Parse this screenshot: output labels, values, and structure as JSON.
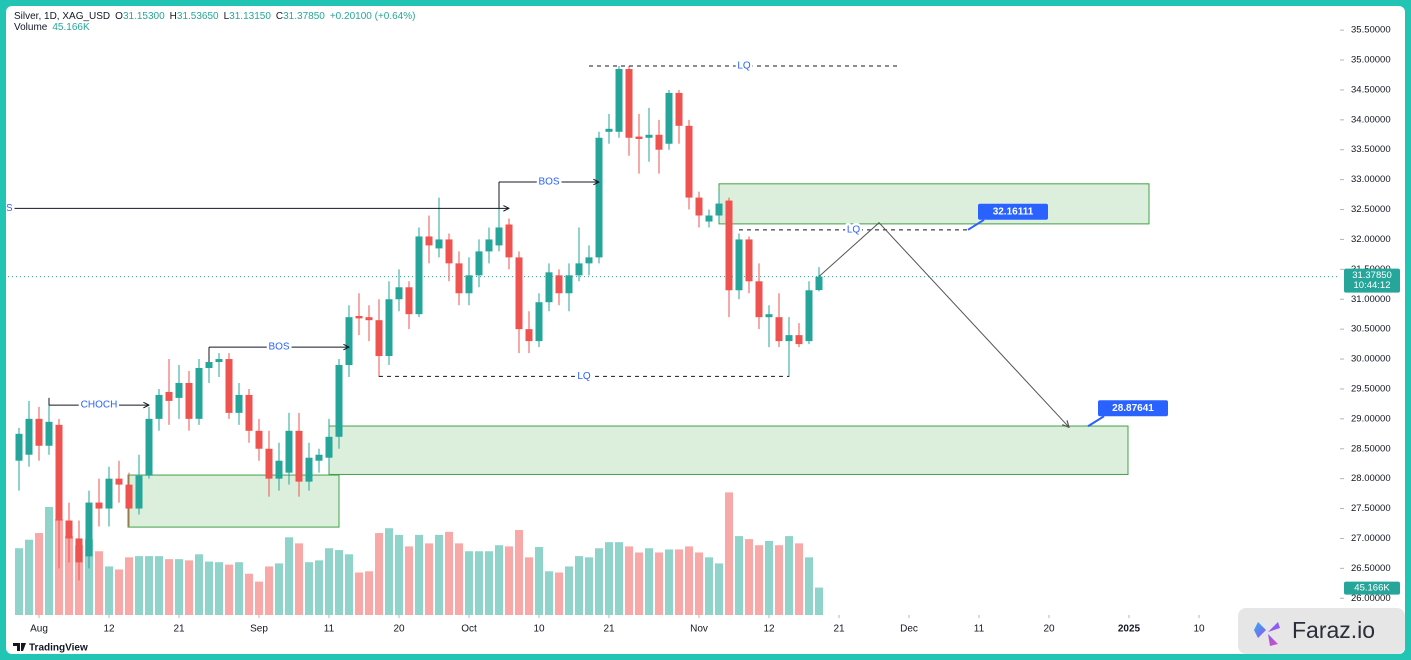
{
  "chart_data": {
    "type": "candlestick",
    "header": {
      "title": "Silver, 1D, XAG_USD",
      "fields": [
        {
          "key": "O",
          "value": "31.15300"
        },
        {
          "key": "H",
          "value": "31.53650"
        },
        {
          "key": "L",
          "value": "31.13150"
        },
        {
          "key": "C",
          "value": "31.37850"
        }
      ],
      "change": "+0.20100 (+0.64%)",
      "volume_label": "Volume",
      "volume_value": "45.166K"
    },
    "up_color": "#26a69a",
    "down_color": "#ef5350",
    "x": [
      -2,
      -1,
      0,
      1,
      2,
      3,
      4,
      5,
      6,
      7,
      8,
      9,
      10,
      11,
      12,
      13,
      14,
      15,
      16,
      17,
      18,
      19,
      20,
      21,
      22,
      23,
      24,
      25,
      26,
      27,
      28,
      29,
      30,
      31,
      32,
      33,
      34,
      35,
      36,
      37,
      38,
      39,
      40,
      41,
      42,
      43,
      44,
      45,
      46,
      47,
      48,
      49,
      50,
      51,
      52,
      53,
      54,
      55,
      56,
      57,
      58,
      59,
      60,
      61,
      62,
      63,
      64,
      65,
      66,
      67,
      68,
      69,
      70,
      71,
      72,
      73,
      74,
      75,
      76,
      77,
      78
    ],
    "open": [
      28.3,
      28.4,
      29.0,
      28.55,
      28.9,
      27.3,
      27.0,
      26.7,
      27.6,
      27.5,
      28.0,
      27.9,
      27.5,
      28.05,
      29.0,
      29.45,
      29.35,
      29.6,
      29.0,
      29.85,
      29.95,
      30.0,
      29.1,
      29.4,
      28.8,
      28.5,
      28.0,
      28.1,
      28.8,
      27.95,
      28.3,
      28.35,
      28.7,
      29.9,
      30.72,
      30.7,
      30.65,
      30.05,
      31.0,
      31.2,
      30.75,
      32.05,
      31.85,
      32.0,
      31.6,
      31.1,
      31.4,
      31.8,
      31.9,
      32.25,
      31.7,
      30.5,
      30.3,
      30.95,
      31.4,
      31.1,
      31.4,
      31.6,
      31.7,
      33.8,
      33.8,
      34.85,
      33.72,
      33.7,
      33.75,
      33.6,
      34.45,
      33.9,
      32.7,
      32.3,
      32.4,
      32.65,
      31.15,
      32.0,
      31.3,
      30.7,
      30.7,
      30.3,
      30.4,
      30.3,
      31.153
    ],
    "high": [
      28.85,
      29.3,
      29.2,
      29.3,
      29.0,
      27.6,
      27.3,
      27.8,
      28.0,
      28.2,
      28.3,
      28.1,
      28.4,
      29.2,
      29.5,
      30.0,
      29.9,
      29.8,
      30.0,
      30.15,
      30.1,
      30.1,
      29.6,
      29.5,
      29.0,
      28.8,
      28.6,
      29.1,
      29.1,
      28.6,
      28.5,
      29.0,
      30.0,
      30.9,
      31.1,
      30.9,
      31.0,
      31.3,
      31.5,
      31.3,
      32.2,
      32.4,
      32.7,
      32.1,
      31.8,
      31.7,
      32.0,
      32.2,
      32.6,
      32.35,
      31.8,
      30.8,
      31.1,
      31.6,
      31.5,
      31.6,
      32.2,
      31.9,
      33.8,
      34.1,
      34.9,
      34.9,
      34.1,
      34.2,
      34.0,
      34.5,
      34.5,
      34.0,
      32.8,
      32.5,
      32.8,
      32.7,
      32.1,
      32.05,
      31.6,
      30.9,
      31.1,
      30.7,
      30.6,
      31.3,
      31.5365
    ],
    "low": [
      27.8,
      28.2,
      28.3,
      28.4,
      26.5,
      26.6,
      26.3,
      26.5,
      27.2,
      27.2,
      27.6,
      27.2,
      27.4,
      28.0,
      28.8,
      28.9,
      29.0,
      28.8,
      28.9,
      29.6,
      29.7,
      29.0,
      28.9,
      28.6,
      28.3,
      27.7,
      27.8,
      27.9,
      27.7,
      27.8,
      28.1,
      28.2,
      28.5,
      29.7,
      30.4,
      30.3,
      29.7,
      29.9,
      30.8,
      30.5,
      30.7,
      31.6,
      31.7,
      31.3,
      30.9,
      30.9,
      31.2,
      31.6,
      31.8,
      31.5,
      30.1,
      30.1,
      30.2,
      30.8,
      30.9,
      30.8,
      31.3,
      31.4,
      31.6,
      33.6,
      33.7,
      33.4,
      33.1,
      33.3,
      33.1,
      33.5,
      33.6,
      32.5,
      32.2,
      32.2,
      32.3,
      30.7,
      31.0,
      31.1,
      30.5,
      30.2,
      30.2,
      29.7,
      30.2,
      30.25,
      31.1315
    ],
    "close": [
      28.75,
      29.0,
      28.55,
      28.95,
      27.3,
      27.0,
      26.6,
      27.6,
      27.5,
      28.0,
      27.9,
      27.5,
      28.05,
      29.0,
      29.4,
      29.3,
      29.6,
      29.0,
      29.85,
      29.95,
      30.0,
      29.1,
      29.4,
      28.8,
      28.5,
      28.0,
      28.3,
      28.8,
      27.95,
      28.35,
      28.4,
      28.7,
      29.9,
      30.7,
      30.68,
      30.65,
      30.05,
      31.0,
      31.2,
      30.75,
      32.05,
      31.9,
      32.0,
      31.6,
      31.1,
      31.4,
      31.8,
      32.0,
      32.2,
      31.7,
      30.5,
      30.3,
      30.95,
      31.45,
      31.1,
      31.4,
      31.6,
      31.7,
      33.7,
      33.85,
      34.85,
      33.7,
      33.68,
      33.75,
      33.5,
      34.45,
      33.9,
      32.7,
      32.4,
      32.4,
      32.6,
      31.15,
      32.0,
      31.3,
      30.7,
      30.75,
      30.3,
      30.4,
      30.25,
      31.15,
      31.3785
    ],
    "volume": [
      110,
      124,
      135,
      178,
      158,
      130,
      115,
      125,
      105,
      80,
      75,
      95,
      97,
      97,
      97,
      92,
      92,
      90,
      100,
      88,
      87,
      83,
      87,
      68,
      55,
      80,
      85,
      128,
      118,
      87,
      90,
      110,
      107,
      100,
      70,
      72,
      135,
      143,
      132,
      113,
      132,
      118,
      132,
      137,
      118,
      105,
      105,
      105,
      115,
      113,
      140,
      95,
      112,
      72,
      70,
      80,
      97,
      95,
      110,
      120,
      120,
      113,
      103,
      110,
      103,
      108,
      108,
      113,
      103,
      95,
      85,
      202,
      130,
      125,
      115,
      122,
      115,
      130,
      118,
      95,
      45.166
    ],
    "volume_value_labels_last": "45.166K",
    "volume_lim": [
      0,
      1000
    ],
    "xlim": [
      -3.9,
      130.1
    ],
    "ylim": [
      25.72,
      35.87
    ],
    "xticks": [
      {
        "value": 0,
        "label": "Aug"
      },
      {
        "value": 7,
        "label": "12"
      },
      {
        "value": 14,
        "label": "21"
      },
      {
        "value": 22,
        "label": "Sep"
      },
      {
        "value": 29,
        "label": "11"
      },
      {
        "value": 36,
        "label": "20"
      },
      {
        "value": 43,
        "label": "Oct"
      },
      {
        "value": 50,
        "label": "10"
      },
      {
        "value": 57,
        "label": "21"
      },
      {
        "value": 66,
        "label": "Nov"
      },
      {
        "value": 73,
        "label": "12"
      },
      {
        "value": 80,
        "label": "21"
      },
      {
        "value": 87,
        "label": "Dec"
      },
      {
        "value": 94,
        "label": "11"
      },
      {
        "value": 101,
        "label": "20"
      },
      {
        "value": 109,
        "label": "2025"
      },
      {
        "value": 116,
        "label": "10"
      }
    ],
    "yticks": [
      {
        "value": 26,
        "label": "26.00000"
      },
      {
        "value": 26.5,
        "label": "26.50000"
      },
      {
        "value": 27,
        "label": "27.00000"
      },
      {
        "value": 27.5,
        "label": "27.50000"
      },
      {
        "value": 28,
        "label": "28.00000"
      },
      {
        "value": 28.5,
        "label": "28.50000"
      },
      {
        "value": 29,
        "label": "29.00000"
      },
      {
        "value": 29.5,
        "label": "29.50000"
      },
      {
        "value": 30,
        "label": "30.00000"
      },
      {
        "value": 30.5,
        "label": "30.50000"
      },
      {
        "value": 31,
        "label": "31.00000"
      },
      {
        "value": 31.5,
        "label": "31.50000"
      },
      {
        "value": 32,
        "label": "32.00000"
      },
      {
        "value": 32.5,
        "label": "32.50000"
      },
      {
        "value": 33,
        "label": "33.00000"
      },
      {
        "value": 33.5,
        "label": "33.50000"
      },
      {
        "value": 34,
        "label": "34.00000"
      },
      {
        "value": 34.5,
        "label": "34.50000"
      },
      {
        "value": 35,
        "label": "35.00000"
      },
      {
        "value": 35.5,
        "label": "35.50000"
      }
    ],
    "last_price": {
      "value": 31.3785,
      "label": "31.37850",
      "countdown": "10:44:12"
    },
    "structure_lines": [
      {
        "label": "BOS",
        "price": 32.52,
        "x": [
          -3.9,
          47
        ]
      },
      {
        "label": "BOS",
        "price": 32.96,
        "from": 32.52,
        "x": [
          46,
          56
        ]
      },
      {
        "label": "BOS",
        "price": 30.2,
        "from": 29.95,
        "x": [
          17,
          31
        ]
      },
      {
        "label": "CHOCH",
        "price": 29.23,
        "from": 29.35,
        "x": [
          1,
          11
        ]
      }
    ],
    "liquidity_lines": [
      {
        "label": "LQ",
        "price": 34.9,
        "x": [
          55,
          86
        ]
      },
      {
        "label": "LQ",
        "price": 29.71,
        "x": [
          34,
          75
        ]
      },
      {
        "label": "LQ",
        "price": 32.16,
        "x": [
          70,
          92.9
        ]
      }
    ],
    "zones": [
      {
        "x": [
          8.9,
          30
        ],
        "ylim": [
          27.19,
          28.06
        ]
      },
      {
        "x": [
          29,
          108.9
        ],
        "ylim": [
          28.07,
          28.88
        ]
      },
      {
        "x": [
          68,
          111
        ],
        "ylim": [
          32.26,
          32.93
        ]
      }
    ],
    "projection": {
      "x": [
        78,
        84,
        103
      ],
      "y": [
        31.38,
        32.28,
        28.86
      ]
    },
    "targets": [
      {
        "value": 32.16111,
        "x": 92.9
      },
      {
        "value": 28.87641,
        "x": 104.9
      }
    ],
    "branding": {
      "tradingview": "TradingView",
      "watermark": "Faraz.io"
    }
  }
}
